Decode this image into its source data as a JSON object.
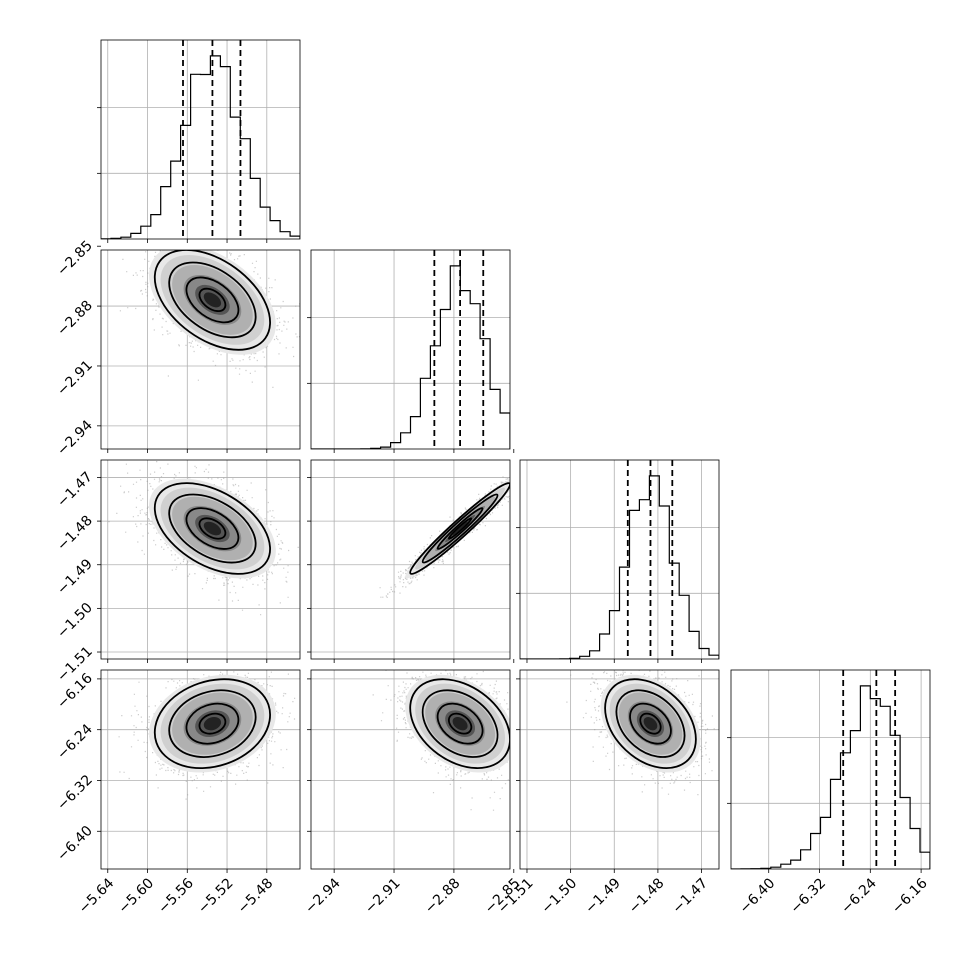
{
  "chart_data": {
    "type": "corner",
    "grid": true,
    "parameters": [
      {
        "ticks": [
          -5.64,
          -5.6,
          -5.56,
          -5.52,
          -5.48
        ],
        "tick_labels": [
          "−5.64",
          "−5.60",
          "−5.56",
          "−5.52",
          "−5.48"
        ],
        "range": [
          -5.6468,
          -5.4466
        ],
        "quantiles": [
          -5.5643,
          -5.5347,
          -5.5065
        ],
        "peak": -5.5347,
        "sigma": 0.029
      },
      {
        "ticks": [
          -2.94,
          -2.91,
          -2.88,
          -2.85
        ],
        "tick_labels": [
          "−2.94",
          "−2.91",
          "−2.88",
          "−2.85"
        ],
        "range": [
          -2.9516,
          -2.8519
        ],
        "quantiles": [
          -2.8898,
          -2.8769,
          -2.8653
        ],
        "peak": -2.8769,
        "sigma": 0.0125
      },
      {
        "ticks": [
          -1.51,
          -1.5,
          -1.49,
          -1.48,
          -1.47
        ],
        "tick_labels": [
          "−1.51",
          "−1.50",
          "−1.49",
          "−1.48",
          "−1.47"
        ],
        "range": [
          -1.5116,
          -1.466
        ],
        "quantiles": [
          -1.4869,
          -1.4817,
          -1.4767
        ],
        "peak": -1.4817,
        "sigma": 0.0052
      },
      {
        "ticks": [
          -6.4,
          -6.32,
          -6.24,
          -6.16
        ],
        "tick_labels": [
          "−6.40",
          "−6.32",
          "−6.24",
          "−6.16"
        ],
        "range": [
          -6.4594,
          -6.146
        ],
        "quantiles": [
          -6.2827,
          -6.2305,
          -6.2009
        ],
        "peak": -6.2305,
        "sigma": 0.035
      },
      {
        "note_row_labels_1": [
          "−2.85",
          "−2.88",
          "−2.91",
          "−2.94"
        ]
      }
    ],
    "row_tick_labels": {
      "param2": [
        "−2.85",
        "−2.88",
        "−2.91",
        "−2.94"
      ],
      "param3": [
        "−1.47",
        "−1.48",
        "−1.49",
        "−1.50",
        "−1.51"
      ],
      "param4": [
        "−6.16",
        "−6.24",
        "−6.32",
        "−6.40"
      ]
    },
    "correlations": [
      [
        1,
        -0.45,
        -0.45,
        0.2
      ],
      [
        -0.45,
        1,
        0.97,
        -0.35
      ],
      [
        -0.45,
        0.97,
        1,
        -0.35
      ],
      [
        0.2,
        -0.35,
        -0.35,
        1
      ]
    ],
    "histogram_style": "step",
    "contour_levels": 3,
    "quantile_line_style": "dashed"
  }
}
